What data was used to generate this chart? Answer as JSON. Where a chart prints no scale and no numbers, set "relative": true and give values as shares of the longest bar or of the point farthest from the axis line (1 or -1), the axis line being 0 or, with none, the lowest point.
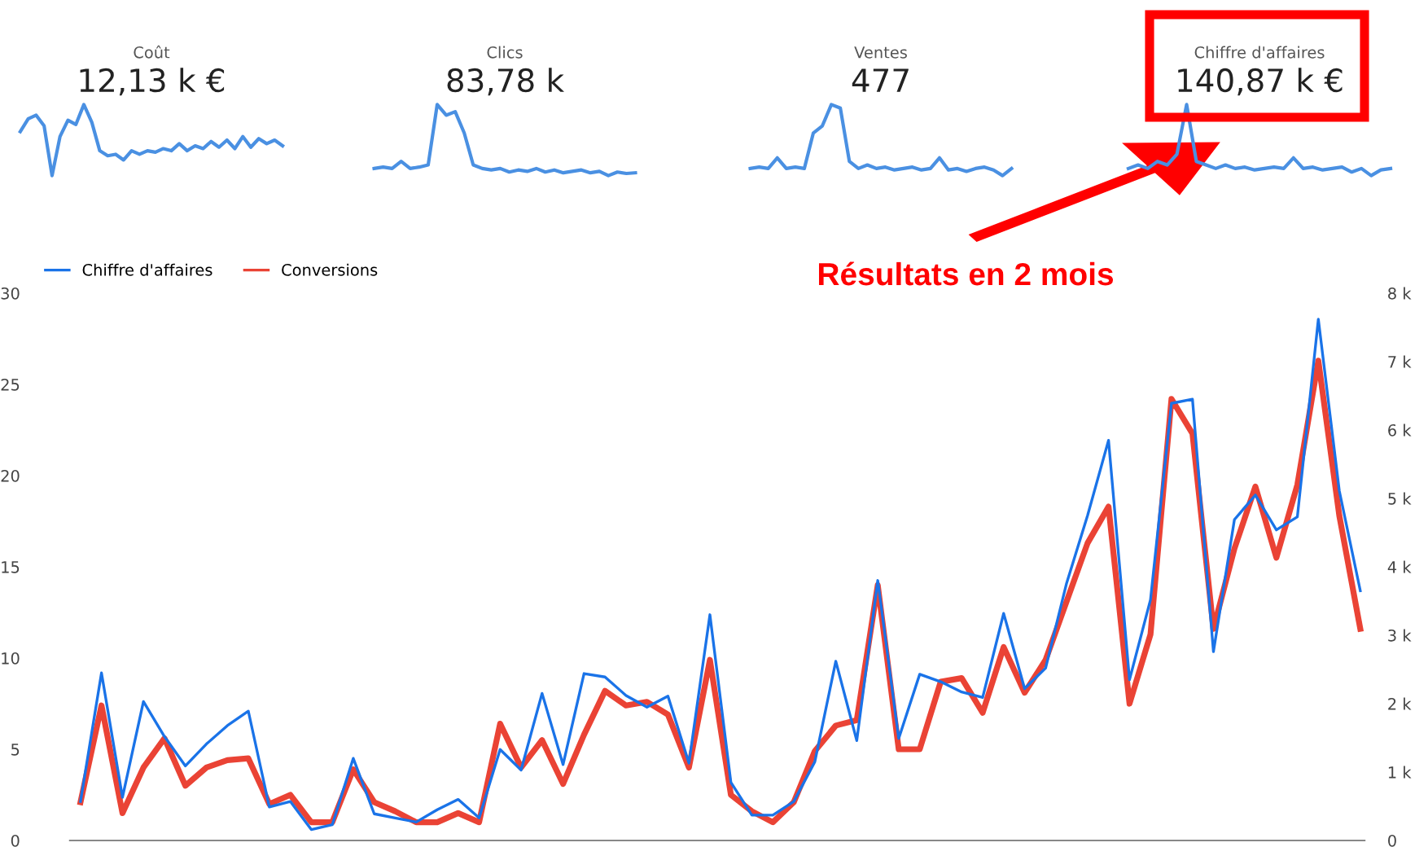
{
  "chart_data": [
    {
      "type": "line",
      "relative": true,
      "title": "Coût",
      "subtitle": "12,13 k €",
      "categories": [
        null,
        null,
        null,
        null,
        null,
        null,
        null,
        null,
        null,
        null,
        null,
        null,
        null,
        null,
        null,
        null,
        null,
        null,
        null,
        null,
        null,
        null,
        null,
        null,
        null,
        null,
        null,
        null,
        null,
        null,
        null,
        null,
        null,
        null
      ],
      "series": [
        {
          "color": "#4a90e2",
          "values": [
            0.62,
            0.8,
            0.85,
            0.7,
            0.0,
            0.55,
            0.78,
            0.72,
            1.0,
            0.75,
            0.35,
            0.28,
            0.3,
            0.22,
            0.35,
            0.3,
            0.35,
            0.33,
            0.38,
            0.35,
            0.45,
            0.35,
            0.42,
            0.38,
            0.48,
            0.4,
            0.5,
            0.38,
            0.55,
            0.4,
            0.52,
            0.45,
            0.5,
            0.42
          ]
        }
      ]
    },
    {
      "type": "line",
      "relative": true,
      "title": "Clics",
      "subtitle": "83,78 k",
      "categories": [
        null,
        null,
        null,
        null,
        null,
        null,
        null,
        null,
        null,
        null,
        null,
        null,
        null,
        null,
        null,
        null,
        null,
        null,
        null,
        null,
        null,
        null,
        null,
        null,
        null,
        null,
        null,
        null,
        null,
        null
      ],
      "series": [
        {
          "color": "#4a90e2",
          "values": [
            0.1,
            0.12,
            0.1,
            0.2,
            0.1,
            0.12,
            0.15,
            1.0,
            0.85,
            0.9,
            0.6,
            0.15,
            0.1,
            0.08,
            0.1,
            0.05,
            0.08,
            0.06,
            0.1,
            0.05,
            0.08,
            0.04,
            0.06,
            0.08,
            0.04,
            0.06,
            0.0,
            0.05,
            0.03,
            0.04
          ]
        }
      ]
    },
    {
      "type": "line",
      "relative": true,
      "title": "Ventes",
      "subtitle": "477",
      "categories": [
        null,
        null,
        null,
        null,
        null,
        null,
        null,
        null,
        null,
        null,
        null,
        null,
        null,
        null,
        null,
        null,
        null,
        null,
        null,
        null,
        null,
        null,
        null,
        null,
        null,
        null,
        null,
        null,
        null,
        null
      ],
      "series": [
        {
          "color": "#4a90e2",
          "values": [
            0.1,
            0.12,
            0.1,
            0.25,
            0.1,
            0.12,
            0.1,
            0.6,
            0.7,
            1.0,
            0.95,
            0.2,
            0.1,
            0.15,
            0.1,
            0.12,
            0.08,
            0.1,
            0.12,
            0.08,
            0.1,
            0.25,
            0.08,
            0.1,
            0.06,
            0.1,
            0.12,
            0.08,
            0.0,
            0.1
          ]
        }
      ]
    },
    {
      "type": "line",
      "relative": true,
      "title": "Chiffre d'affaires",
      "subtitle": "140,87 k €",
      "categories": [
        null,
        null,
        null,
        null,
        null,
        null,
        null,
        null,
        null,
        null,
        null,
        null,
        null,
        null,
        null,
        null,
        null,
        null,
        null,
        null,
        null,
        null,
        null,
        null,
        null,
        null,
        null,
        null
      ],
      "series": [
        {
          "color": "#4a90e2",
          "values": [
            0.1,
            0.15,
            0.1,
            0.2,
            0.15,
            0.3,
            1.0,
            0.2,
            0.15,
            0.1,
            0.15,
            0.1,
            0.12,
            0.08,
            0.1,
            0.12,
            0.1,
            0.25,
            0.1,
            0.12,
            0.08,
            0.1,
            0.12,
            0.05,
            0.1,
            0.0,
            0.08,
            0.1
          ]
        }
      ]
    },
    {
      "type": "line",
      "annotations": [
        "Résultats en 2 mois"
      ],
      "legend": "top left",
      "categories": [
        null,
        null,
        null,
        null,
        null,
        null,
        null,
        null,
        null,
        null,
        null,
        null,
        null,
        null,
        null,
        null,
        null,
        null,
        null,
        null,
        null,
        null,
        null,
        null,
        null,
        null,
        null,
        null,
        null,
        null,
        null,
        null,
        null,
        null,
        null,
        null,
        null,
        null,
        null,
        null,
        null,
        null,
        null,
        null,
        null,
        null,
        null,
        null,
        null,
        null,
        null,
        null,
        null,
        null,
        null,
        null,
        null,
        null,
        null,
        null,
        null,
        null
      ],
      "ylim": [
        0,
        30
      ],
      "yticks": [
        0,
        5,
        10,
        15,
        20,
        25,
        30
      ],
      "y2lim": [
        0,
        8000
      ],
      "y2ticks": [
        0,
        {
          "value": 1000,
          "label": "1 k"
        },
        {
          "value": 2000,
          "label": "2 k"
        },
        {
          "value": 3000,
          "label": "3 k"
        },
        {
          "value": 4000,
          "label": "4 k"
        },
        {
          "value": 5000,
          "label": "5 k"
        },
        {
          "value": 6000,
          "label": "6 k"
        },
        {
          "value": 7000,
          "label": "7 k"
        },
        {
          "value": 8000,
          "label": "8 k"
        }
      ],
      "series": [
        {
          "name": "Chiffre d'affaires",
          "color": "#1a73e8",
          "axis": "y2",
          "values": [
            570,
            2450,
            630,
            2030,
            1520,
            1090,
            1410,
            1680,
            1890,
            490,
            570,
            160,
            230,
            1200,
            390,
            330,
            270,
            450,
            600,
            330,
            1330,
            1030,
            2150,
            1110,
            2440,
            2390,
            2120,
            1950,
            2110,
            1130,
            3300,
            850,
            370,
            370,
            570,
            1150,
            2620,
            1460,
            3800,
            1490,
            2430,
            2320,
            2170,
            2090,
            3320,
            2220,
            2520,
            3760,
            4750,
            5850,
            2350,
            3520,
            6390,
            6450,
            2760,
            4690,
            5050,
            4540,
            4730,
            7620,
            5110,
            3650
          ]
        },
        {
          "name": "Conversions",
          "color": "#ea4335",
          "values": [
            2.1,
            7.4,
            1.5,
            4.0,
            5.6,
            3.0,
            4.0,
            4.4,
            4.5,
            2.0,
            2.5,
            1.0,
            1.0,
            3.9,
            2.1,
            1.6,
            1.0,
            1.0,
            1.5,
            1.0,
            6.4,
            4.0,
            5.5,
            3.1,
            5.8,
            8.2,
            7.4,
            7.6,
            6.9,
            4.0,
            9.9,
            2.5,
            1.6,
            1.0,
            2.1,
            4.9,
            6.3,
            6.6,
            14.0,
            5.0,
            5.0,
            8.7,
            8.9,
            7.0,
            10.6,
            8.1,
            9.9,
            13.1,
            16.3,
            18.3,
            7.5,
            11.3,
            24.2,
            22.3,
            11.6,
            16.0,
            19.4,
            15.5,
            19.5,
            26.3,
            17.8,
            11.6
          ]
        }
      ]
    }
  ]
}
